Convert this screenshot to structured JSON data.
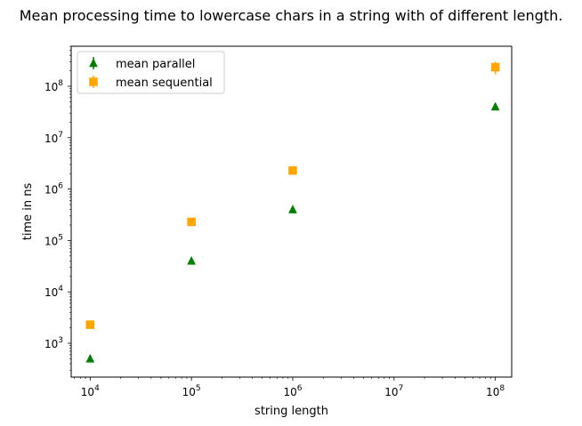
{
  "chart_data": {
    "type": "scatter",
    "title": "Mean processing time to lowercase chars in a string with of different length.",
    "xlabel": "string length",
    "ylabel": "time in ns",
    "xscale": "log",
    "yscale": "log",
    "xlim": [
      6500,
      145000000
    ],
    "ylim": [
      220,
      600000000
    ],
    "grid": false,
    "legend_position": "top-left",
    "x_ticks": [
      {
        "value": 10000,
        "base": "10",
        "exp": "4"
      },
      {
        "value": 100000,
        "base": "10",
        "exp": "5"
      },
      {
        "value": 1000000,
        "base": "10",
        "exp": "6"
      },
      {
        "value": 10000000,
        "base": "10",
        "exp": "7"
      },
      {
        "value": 100000000,
        "base": "10",
        "exp": "8"
      }
    ],
    "y_ticks": [
      {
        "value": 1000,
        "base": "10",
        "exp": "3"
      },
      {
        "value": 10000,
        "base": "10",
        "exp": "4"
      },
      {
        "value": 100000,
        "base": "10",
        "exp": "5"
      },
      {
        "value": 1000000,
        "base": "10",
        "exp": "6"
      },
      {
        "value": 10000000,
        "base": "10",
        "exp": "7"
      },
      {
        "value": 100000000,
        "base": "10",
        "exp": "8"
      }
    ],
    "series": [
      {
        "name": "mean parallel",
        "color": "#008000",
        "marker": "triangle",
        "points": [
          {
            "x": 10000,
            "y": 500,
            "err": 40
          },
          {
            "x": 100000,
            "y": 40000,
            "err": 2000
          },
          {
            "x": 1000000,
            "y": 400000,
            "err": 15000
          },
          {
            "x": 100000000,
            "y": 40000000,
            "err": 2000000
          }
        ]
      },
      {
        "name": "mean sequential",
        "color": "#ffa500",
        "marker": "square",
        "points": [
          {
            "x": 10000,
            "y": 2300,
            "err": 100
          },
          {
            "x": 100000,
            "y": 230000,
            "err": 10000
          },
          {
            "x": 1000000,
            "y": 2300000,
            "err": 100000
          },
          {
            "x": 100000000,
            "y": 235000000,
            "err": 65000000
          }
        ]
      }
    ]
  }
}
